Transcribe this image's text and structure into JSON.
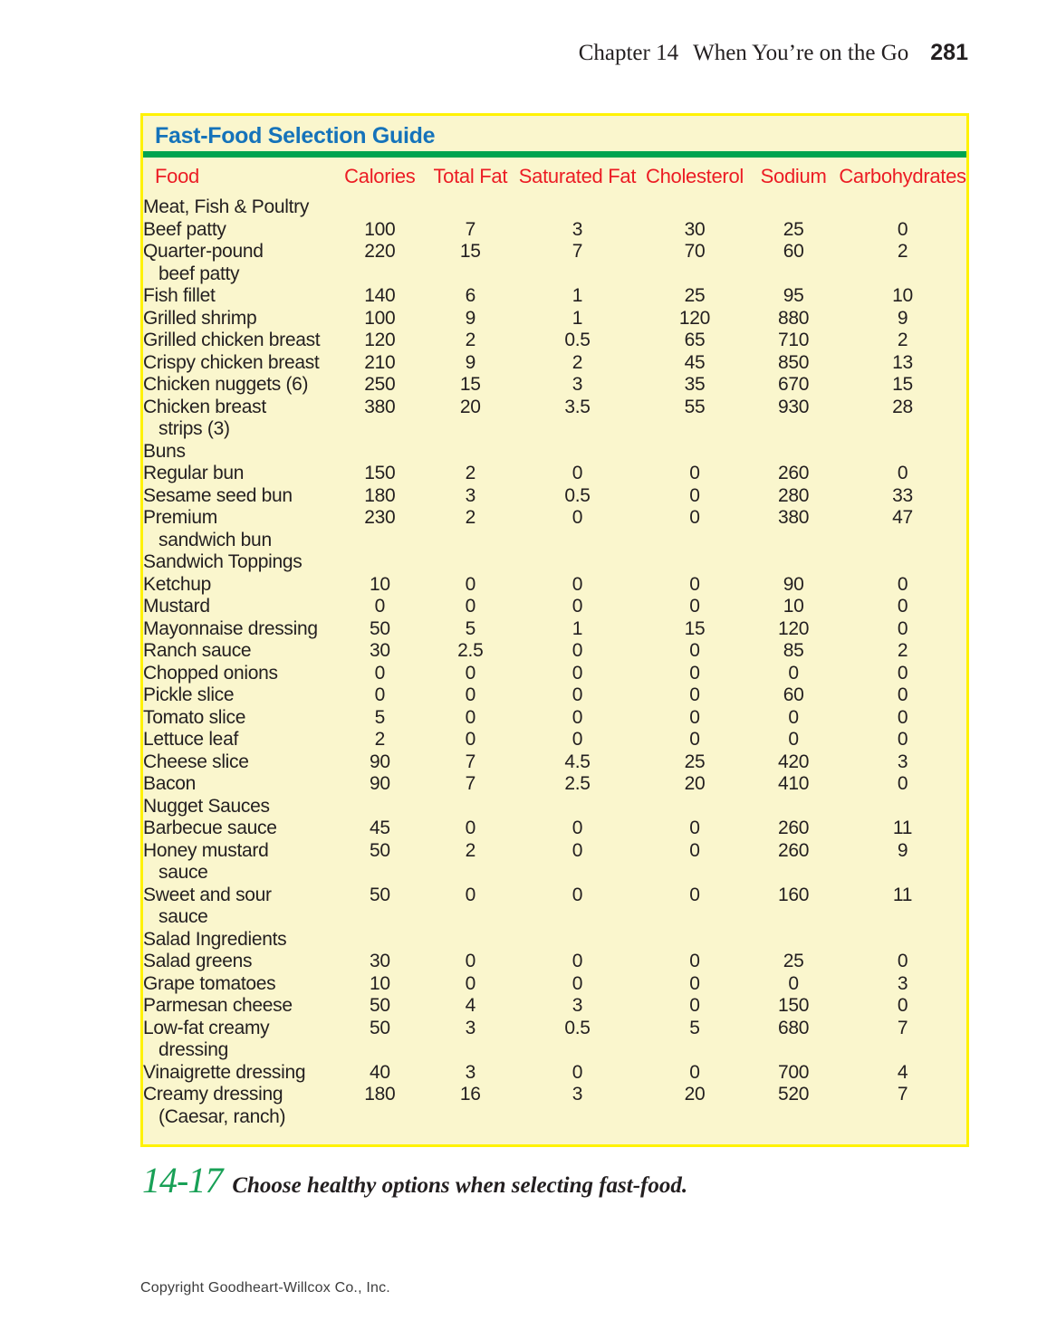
{
  "header": {
    "chapter_label": "Chapter 14",
    "title": "When You’re on the Go",
    "page_number": "281"
  },
  "table": {
    "title": "Fast-Food Selection Guide",
    "columns": [
      "Food",
      "Calories",
      "Total Fat",
      "Saturated Fat",
      "Cholesterol",
      "Sodium",
      "Carbohydrates"
    ],
    "sections": [
      {
        "name": "Meat, Fish & Poultry",
        "rows": [
          {
            "food": "Beef patty",
            "values": [
              "100",
              "7",
              "3",
              "30",
              "25",
              "0"
            ]
          },
          {
            "food": "Quarter-pound",
            "food2": "beef patty",
            "values": [
              "220",
              "15",
              "7",
              "70",
              "60",
              "2"
            ]
          },
          {
            "food": "Fish fillet",
            "values": [
              "140",
              "6",
              "1",
              "25",
              "95",
              "10"
            ]
          },
          {
            "food": "Grilled shrimp",
            "values": [
              "100",
              "9",
              "1",
              "120",
              "880",
              "9"
            ]
          },
          {
            "food": "Grilled chicken breast",
            "values": [
              "120",
              "2",
              "0.5",
              "65",
              "710",
              "2"
            ]
          },
          {
            "food": "Crispy chicken breast",
            "values": [
              "210",
              "9",
              "2",
              "45",
              "850",
              "13"
            ]
          },
          {
            "food": "Chicken nuggets (6)",
            "values": [
              "250",
              "15",
              "3",
              "35",
              "670",
              "15"
            ]
          },
          {
            "food": "Chicken breast",
            "food2": "strips (3)",
            "values": [
              "380",
              "20",
              "3.5",
              "55",
              "930",
              "28"
            ]
          }
        ]
      },
      {
        "name": "Buns",
        "rows": [
          {
            "food": "Regular bun",
            "values": [
              "150",
              "2",
              "0",
              "0",
              "260",
              "0"
            ]
          },
          {
            "food": "Sesame seed bun",
            "values": [
              "180",
              "3",
              "0.5",
              "0",
              "280",
              "33"
            ]
          },
          {
            "food": "Premium",
            "food2": "sandwich bun",
            "values": [
              "230",
              "2",
              "0",
              "0",
              "380",
              "47"
            ]
          }
        ]
      },
      {
        "name": "Sandwich Toppings",
        "rows": [
          {
            "food": "Ketchup",
            "values": [
              "10",
              "0",
              "0",
              "0",
              "90",
              "0"
            ]
          },
          {
            "food": "Mustard",
            "values": [
              "0",
              "0",
              "0",
              "0",
              "10",
              "0"
            ]
          },
          {
            "food": "Mayonnaise dressing",
            "values": [
              "50",
              "5",
              "1",
              "15",
              "120",
              "0"
            ]
          },
          {
            "food": "Ranch sauce",
            "values": [
              "30",
              "2.5",
              "0",
              "0",
              "85",
              "2"
            ]
          },
          {
            "food": "Chopped onions",
            "values": [
              "0",
              "0",
              "0",
              "0",
              "0",
              "0"
            ]
          },
          {
            "food": "Pickle slice",
            "values": [
              "0",
              "0",
              "0",
              "0",
              "60",
              "0"
            ]
          },
          {
            "food": "Tomato slice",
            "values": [
              "5",
              "0",
              "0",
              "0",
              "0",
              "0"
            ]
          },
          {
            "food": "Lettuce leaf",
            "values": [
              "2",
              "0",
              "0",
              "0",
              "0",
              "0"
            ]
          },
          {
            "food": "Cheese slice",
            "values": [
              "90",
              "7",
              "4.5",
              "25",
              "420",
              "3"
            ]
          },
          {
            "food": "Bacon",
            "values": [
              "90",
              "7",
              "2.5",
              "20",
              "410",
              "0"
            ]
          }
        ]
      },
      {
        "name": "Nugget Sauces",
        "rows": [
          {
            "food": "Barbecue sauce",
            "values": [
              "45",
              "0",
              "0",
              "0",
              "260",
              "11"
            ]
          },
          {
            "food": "Honey mustard",
            "food2": "sauce",
            "values": [
              "50",
              "2",
              "0",
              "0",
              "260",
              "9"
            ]
          },
          {
            "food": "Sweet and sour",
            "food2": "sauce",
            "values": [
              "50",
              "0",
              "0",
              "0",
              "160",
              "11"
            ]
          }
        ]
      },
      {
        "name": "Salad Ingredients",
        "rows": [
          {
            "food": "Salad greens",
            "values": [
              "30",
              "0",
              "0",
              "0",
              "25",
              "0"
            ]
          },
          {
            "food": "Grape tomatoes",
            "values": [
              "10",
              "0",
              "0",
              "0",
              "0",
              "3"
            ]
          },
          {
            "food": "Parmesan cheese",
            "values": [
              "50",
              "4",
              "3",
              "0",
              "150",
              "0"
            ]
          },
          {
            "food": "Low-fat creamy",
            "food2": "dressing",
            "values": [
              "50",
              "3",
              "0.5",
              "5",
              "680",
              "7"
            ]
          },
          {
            "food": "Vinaigrette dressing",
            "values": [
              "40",
              "3",
              "0",
              "0",
              "700",
              "4"
            ]
          },
          {
            "food": "Creamy dressing",
            "food2": "(Caesar, ranch)",
            "values": [
              "180",
              "16",
              "3",
              "20",
              "520",
              "7"
            ]
          }
        ]
      }
    ]
  },
  "caption": {
    "figure_number": "14-17",
    "text": "Choose healthy options when selecting fast-food."
  },
  "footer": {
    "text": "Copyright Goodheart-Willcox Co., Inc."
  },
  "colors": {
    "table_border_yellow": "#fff200",
    "table_background_cream": "#faf6cd",
    "title_blue": "#1573ba",
    "divider_green": "#00a44f",
    "column_header_red": "#ec1c24",
    "section_header_blue": "#1573ba",
    "body_text": "#231f20",
    "caption_green": "#18a056"
  }
}
